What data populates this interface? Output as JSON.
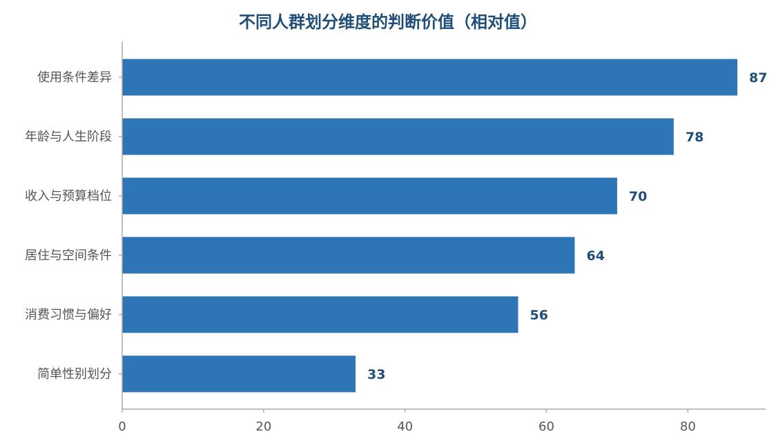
{
  "chart_data": {
    "type": "bar",
    "orientation": "horizontal",
    "title": "不同人群划分维度的判断价值（相对值）",
    "categories": [
      "使用条件差异",
      "年龄与人生阶段",
      "收入与预算档位",
      "居住与空间条件",
      "消费习惯与偏好",
      "简单性别划分"
    ],
    "values": [
      87,
      78,
      70,
      64,
      56,
      33
    ],
    "xlim": [
      0,
      91
    ],
    "x_ticks": [
      "0",
      "20",
      "40",
      "60",
      "80"
    ],
    "xlabel": "",
    "ylabel": "",
    "grid": false,
    "legend": "none",
    "bar_color": "#2e75b6",
    "label_color": "#1f4e79",
    "axis_color": "#aaaaaa"
  }
}
